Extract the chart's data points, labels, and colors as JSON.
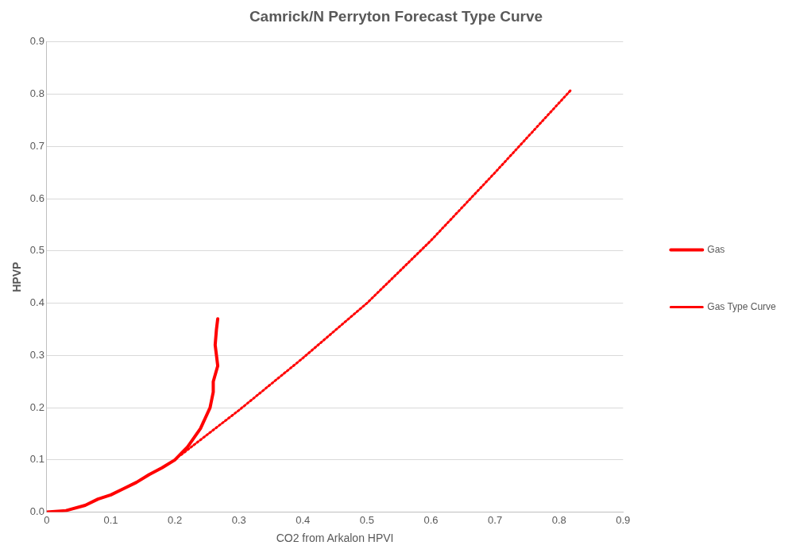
{
  "chart_data": {
    "type": "line",
    "title": "Camrick/N Perryton Forecast Type Curve",
    "xlabel": "CO2 from Arkalon HPVI",
    "ylabel": "HPVP",
    "xlim": [
      0,
      0.9
    ],
    "xticks": [
      0,
      0.1,
      0.2,
      0.3,
      0.4,
      0.5,
      0.6,
      0.7,
      0.8,
      0.9
    ],
    "ylim": [
      0,
      0.9
    ],
    "yticks": [
      {
        "value": 0,
        "label": "0.0"
      },
      0.1,
      0.2,
      0.3,
      0.4,
      0.5,
      0.6,
      0.7,
      0.8,
      0.9
    ],
    "grid": "y",
    "legend": "right",
    "marker": "none",
    "series": [
      {
        "name": "Gas",
        "color": "#ff0000",
        "line_style": "solid",
        "x": [
          0,
          0.03,
          0.06,
          0.08,
          0.1,
          0.12,
          0.14,
          0.16,
          0.18,
          0.2,
          0.22,
          0.24,
          0.255,
          0.26,
          0.26,
          0.267,
          0.265,
          0.263,
          0.265,
          0.267
        ],
        "values": [
          0,
          0.003,
          0.013,
          0.025,
          0.033,
          0.045,
          0.057,
          0.072,
          0.085,
          0.1,
          0.125,
          0.16,
          0.2,
          0.23,
          0.25,
          0.28,
          0.3,
          0.32,
          0.35,
          0.37
        ]
      },
      {
        "name": "Gas Type Curve",
        "color": "#ff0000",
        "line_style": "dotted",
        "x": [
          0.21,
          0.3,
          0.4,
          0.5,
          0.6,
          0.7,
          0.82
        ],
        "values": [
          0.11,
          0.195,
          0.295,
          0.4,
          0.52,
          0.65,
          0.81
        ]
      }
    ]
  }
}
